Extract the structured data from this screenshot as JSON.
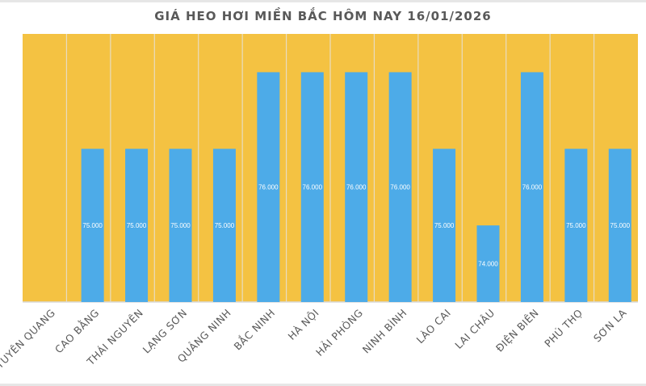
{
  "chart_data": {
    "type": "bar",
    "title": "GIÁ HEO HƠI MIỀN BẮC HÔM NAY 16/01/2026",
    "categories": [
      "TUYÊN QUANG",
      "CAO BẰNG",
      "THÁI NGUYÊN",
      "LẠNG SƠN",
      "QUẢNG NINH",
      "BẮC NINH",
      "HÀ NỘI",
      "HẢI PHÒNG",
      "NINH BÌNH",
      "LÀO CAI",
      "LAI CHÂU",
      "ĐIỆN BIÊN",
      "PHÚ THỌ",
      "SƠN LA"
    ],
    "values": [
      null,
      75000,
      75000,
      75000,
      75000,
      76000,
      76000,
      76000,
      76000,
      75000,
      74000,
      76000,
      75000,
      75000
    ],
    "data_labels": [
      "",
      "75.000",
      "75.000",
      "75.000",
      "75.000",
      "76.000",
      "76.000",
      "76.000",
      "76.000",
      "75.000",
      "74.000",
      "76.000",
      "75.000",
      "75.000"
    ],
    "xlabel": "",
    "ylabel": "",
    "ylim": [
      73000,
      76500
    ],
    "grid": "vertical category separators",
    "legend": "none",
    "colors": {
      "bar": "#4DABE8",
      "plot_background": "#F4C242",
      "title": "#595959",
      "labels": "#595959"
    }
  }
}
